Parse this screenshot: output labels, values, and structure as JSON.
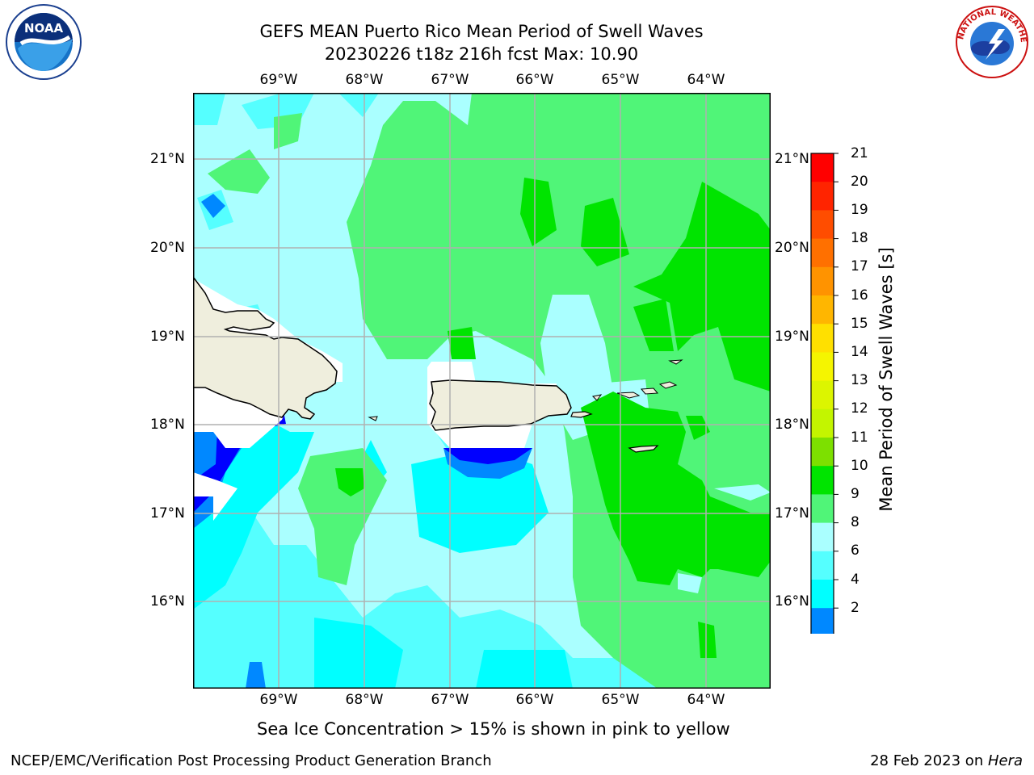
{
  "title": {
    "line1": "GEFS MEAN Puerto Rico Mean Period of Swell Waves",
    "line2": "20230226 t18z 216h fcst   Max: 10.90"
  },
  "map": {
    "lon_labels": [
      "69°W",
      "68°W",
      "67°W",
      "66°W",
      "65°W",
      "64°W"
    ],
    "lat_labels": [
      "21°N",
      "20°N",
      "19°N",
      "18°N",
      "17°N",
      "16°N"
    ],
    "lon_range": [
      -70.0,
      -63.25
    ],
    "lat_range": [
      15.0,
      21.75
    ],
    "land": [
      "Hispaniola",
      "Puerto Rico",
      "Virgin Islands"
    ]
  },
  "colorbar": {
    "label": "Mean Period of Swell Waves [s]",
    "ticks": [
      "21",
      "20",
      "19",
      "18",
      "17",
      "16",
      "15",
      "14",
      "13",
      "12",
      "11",
      "10",
      "9",
      "8",
      "6",
      "4",
      "2"
    ],
    "colors": [
      "#ff0000",
      "#ff2400",
      "#ff4d00",
      "#ff7000",
      "#ff9300",
      "#ffb600",
      "#ffe000",
      "#f5f500",
      "#dcf500",
      "#c3f500",
      "#7de000",
      "#00e400",
      "#50f578",
      "#aaffff",
      "#55ffff",
      "#00ffff",
      "#0088ff",
      "#0000ff"
    ]
  },
  "note": "Sea Ice Concentration > 15% is shown in pink to yellow",
  "footer": {
    "left": "NCEP/EMC/Verification Post Processing Product Generation Branch",
    "right_date": "28 Feb 2023 on ",
    "right_host": "Hera"
  },
  "logos": {
    "noaa_text": "NOAA",
    "nws_text": "NATIONAL WEATHER SERVICE"
  }
}
